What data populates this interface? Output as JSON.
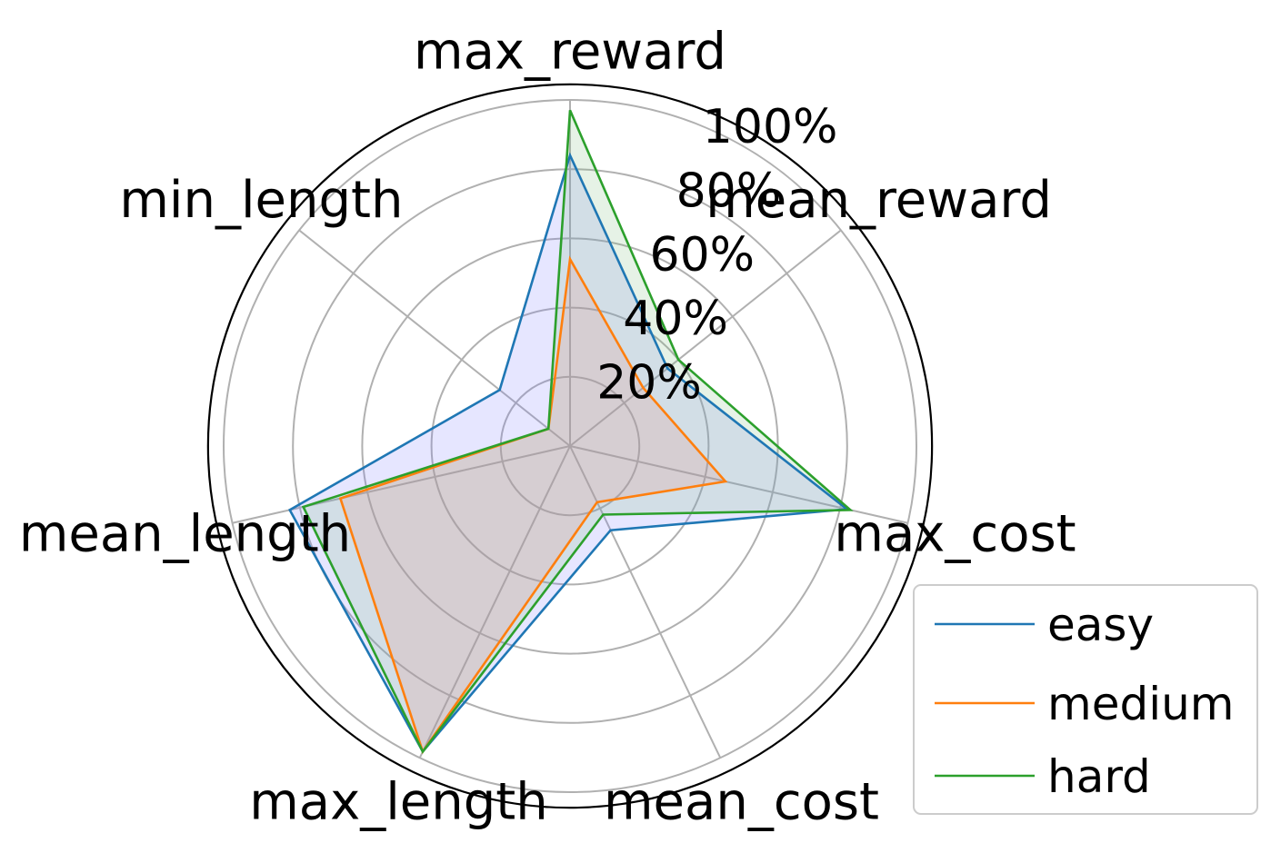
{
  "chart_data": {
    "type": "radar",
    "axes": [
      "max_reward",
      "mean_reward",
      "max_cost",
      "mean_cost",
      "max_length",
      "mean_length",
      "min_length"
    ],
    "rlim": [
      0,
      1.0
    ],
    "rticks": [
      0.2,
      0.4,
      0.6,
      0.8,
      1.0
    ],
    "rtick_labels": [
      "20%",
      "40%",
      "60%",
      "80%",
      "100%"
    ],
    "grid": true,
    "legend_position": "lower-right",
    "series": [
      {
        "name": "easy",
        "color": "#1f77b4",
        "fill": "#8080ff",
        "values": [
          0.84,
          0.36,
          0.82,
          0.27,
          0.98,
          0.83,
          0.26
        ]
      },
      {
        "name": "medium",
        "color": "#ff7f0e",
        "fill": "#ff8080",
        "values": [
          0.54,
          0.27,
          0.46,
          0.18,
          0.98,
          0.68,
          0.08
        ]
      },
      {
        "name": "hard",
        "color": "#2ca02c",
        "fill": "#80c080",
        "values": [
          0.97,
          0.4,
          0.83,
          0.22,
          0.98,
          0.79,
          0.08
        ]
      }
    ]
  }
}
